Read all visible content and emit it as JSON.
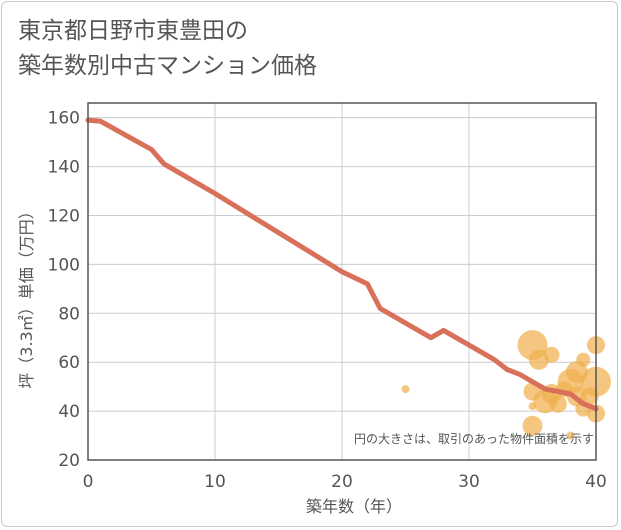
{
  "title": {
    "line1": "東京都日野市東豊田の",
    "line2": "築年数別中古マンション価格"
  },
  "colors": {
    "line": "#d9705a",
    "bubble": "#f0b04e",
    "grid": "#c8ccd4",
    "plot_border": "#555555",
    "text": "#555555"
  },
  "chart_data": {
    "type": "scatter",
    "title": "東京都日野市東豊田の築年数別中古マンション価格",
    "xlabel": "築年数（年）",
    "ylabel": "坪（3.3㎡）単価（万円）",
    "xlim": [
      0,
      40
    ],
    "ylim": [
      20,
      166
    ],
    "xticks": [
      0,
      10,
      20,
      30,
      40
    ],
    "yticks": [
      20,
      40,
      60,
      80,
      100,
      120,
      140,
      160
    ],
    "grid": true,
    "note": "円の大きさは、取引のあった物件面積を示す",
    "series": [
      {
        "kind": "line",
        "x": [
          0,
          1,
          5,
          6,
          10,
          15,
          20,
          22,
          23,
          25,
          27,
          28,
          30,
          32,
          33,
          34,
          35,
          36,
          37,
          38,
          39,
          40
        ],
        "y": [
          159,
          158.5,
          147,
          141,
          129,
          113,
          97,
          92,
          82,
          76,
          70,
          73,
          67,
          61,
          57,
          55,
          52,
          49,
          48,
          47,
          43,
          41
        ]
      },
      {
        "kind": "bubble",
        "points": [
          {
            "x": 25,
            "y": 49,
            "size": 4
          },
          {
            "x": 35,
            "y": 67,
            "size": 15
          },
          {
            "x": 35.5,
            "y": 61,
            "size": 10
          },
          {
            "x": 36.5,
            "y": 63,
            "size": 8
          },
          {
            "x": 35,
            "y": 48,
            "size": 9
          },
          {
            "x": 35,
            "y": 42,
            "size": 4
          },
          {
            "x": 36,
            "y": 44,
            "size": 12
          },
          {
            "x": 36.5,
            "y": 47,
            "size": 10
          },
          {
            "x": 37,
            "y": 43,
            "size": 9
          },
          {
            "x": 37.5,
            "y": 49,
            "size": 8
          },
          {
            "x": 38,
            "y": 52,
            "size": 13
          },
          {
            "x": 38.5,
            "y": 46,
            "size": 10
          },
          {
            "x": 38.5,
            "y": 56,
            "size": 11
          },
          {
            "x": 39,
            "y": 41,
            "size": 8
          },
          {
            "x": 39,
            "y": 61,
            "size": 7
          },
          {
            "x": 39.5,
            "y": 46,
            "size": 9
          },
          {
            "x": 40,
            "y": 67,
            "size": 9
          },
          {
            "x": 40,
            "y": 52,
            "size": 15
          },
          {
            "x": 40,
            "y": 39,
            "size": 9
          },
          {
            "x": 35,
            "y": 34,
            "size": 10
          },
          {
            "x": 38,
            "y": 30,
            "size": 4
          }
        ]
      }
    ]
  }
}
